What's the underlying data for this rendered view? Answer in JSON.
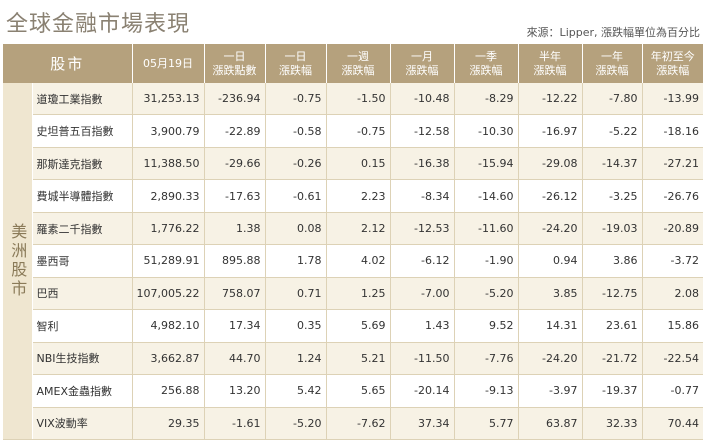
{
  "title": "全球金融市場表現",
  "source": "來源：Lipper, 漲跌幅單位為百分比",
  "table": {
    "headers": [
      {
        "lines": [
          "股市"
        ],
        "big": true
      },
      {
        "lines": [
          "05月19日"
        ]
      },
      {
        "lines": [
          "一日",
          "漲跌點數"
        ]
      },
      {
        "lines": [
          "一日",
          "漲跌幅"
        ]
      },
      {
        "lines": [
          "一週",
          "漲跌幅"
        ]
      },
      {
        "lines": [
          "一月",
          "漲跌幅"
        ]
      },
      {
        "lines": [
          "一季",
          "漲跌幅"
        ]
      },
      {
        "lines": [
          "半年",
          "漲跌幅"
        ]
      },
      {
        "lines": [
          "一年",
          "漲跌幅"
        ]
      },
      {
        "lines": [
          "年初至今",
          "漲跌幅"
        ]
      }
    ],
    "group_label": "美洲股市",
    "rows": [
      [
        "道瓊工業指數",
        "31,253.13",
        "-236.94",
        "-0.75",
        "-1.50",
        "-10.48",
        "-8.29",
        "-12.22",
        "-7.80",
        "-13.99"
      ],
      [
        "史坦普五百指數",
        "3,900.79",
        "-22.89",
        "-0.58",
        "-0.75",
        "-12.58",
        "-10.30",
        "-16.97",
        "-5.22",
        "-18.16"
      ],
      [
        "那斯達克指數",
        "11,388.50",
        "-29.66",
        "-0.26",
        "0.15",
        "-16.38",
        "-15.94",
        "-29.08",
        "-14.37",
        "-27.21"
      ],
      [
        "費城半導體指數",
        "2,890.33",
        "-17.63",
        "-0.61",
        "2.23",
        "-8.34",
        "-14.60",
        "-26.12",
        "-3.25",
        "-26.76"
      ],
      [
        "羅素二千指數",
        "1,776.22",
        "1.38",
        "0.08",
        "2.12",
        "-12.53",
        "-11.60",
        "-24.20",
        "-19.03",
        "-20.89"
      ],
      [
        "墨西哥",
        "51,289.91",
        "895.88",
        "1.78",
        "4.02",
        "-6.12",
        "-1.90",
        "0.94",
        "3.86",
        "-3.72"
      ],
      [
        "巴西",
        "107,005.22",
        "758.07",
        "0.71",
        "1.25",
        "-7.00",
        "-5.20",
        "3.85",
        "-12.75",
        "2.08"
      ],
      [
        "智利",
        "4,982.10",
        "17.34",
        "0.35",
        "5.69",
        "1.43",
        "9.52",
        "14.31",
        "23.61",
        "15.86"
      ],
      [
        "NBI生技指數",
        "3,662.87",
        "44.70",
        "1.24",
        "5.21",
        "-11.50",
        "-7.76",
        "-24.20",
        "-21.72",
        "-22.54"
      ],
      [
        "AMEX金蟲指數",
        "256.88",
        "13.20",
        "5.42",
        "5.65",
        "-20.14",
        "-9.13",
        "-3.97",
        "-19.37",
        "-0.77"
      ],
      [
        "VIX波動率",
        "29.35",
        "-1.61",
        "-5.20",
        "-7.62",
        "37.34",
        "5.77",
        "63.87",
        "32.33",
        "70.44"
      ]
    ]
  }
}
